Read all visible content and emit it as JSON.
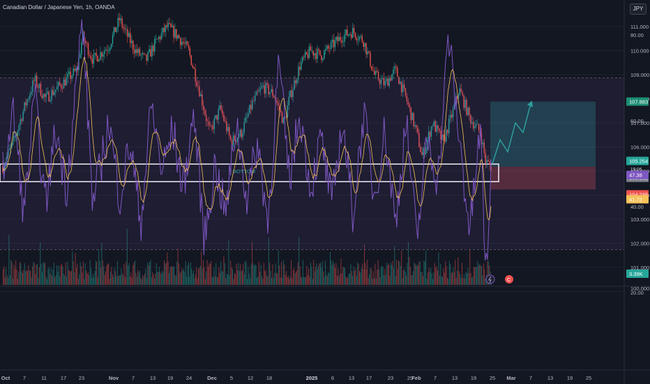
{
  "header": {
    "title": "Canadian Dollar / Japanese Yen, 1h, OANDA",
    "currency": "JPY"
  },
  "colors": {
    "bg": "#131722",
    "up": "#26a69a",
    "down": "#ef5350",
    "rsi": "#7e57c2",
    "rsi_ma": "#f5c15a",
    "box": "#ffffff",
    "arrow": "#26a69a"
  },
  "annotations": {
    "bottom_label": "BOTTOM"
  },
  "price_tags": {
    "target": "107.883",
    "current": "105.254",
    "countdown": "19:06",
    "entry": "105.182",
    "stop": "104.235",
    "volume": "3.39K"
  },
  "rsi_tags": {
    "rsi": "47.38",
    "rsi_ma": "41.72"
  },
  "chart_data": {
    "type": "candlestick",
    "price_axis": {
      "ticks": [
        "111.000",
        "110.000",
        "109.000",
        "108.000",
        "107.000",
        "106.000",
        "105.000",
        "104.000",
        "103.000",
        "102.000",
        "101.000",
        "100.000"
      ],
      "range": [
        100,
        111.5
      ]
    },
    "rsi_axis": {
      "ticks": [
        "80.00",
        "60.00",
        "40.00",
        "20.00"
      ],
      "range": [
        20,
        90
      ],
      "band": [
        30,
        70
      ]
    },
    "x_axis": {
      "ticks": [
        "Oct",
        "7",
        "11",
        "17",
        "23",
        "Nov",
        "7",
        "13",
        "19",
        "24",
        "Dec",
        "5",
        "12",
        "18",
        "2025",
        "6",
        "13",
        "17",
        "23",
        "29",
        "Feb",
        "7",
        "13",
        "19",
        "25",
        "Mar",
        "7",
        "13",
        "19",
        "25"
      ]
    },
    "price_path": [
      [
        0,
        105.2
      ],
      [
        2,
        106.2
      ],
      [
        4,
        107.6
      ],
      [
        6,
        108.8
      ],
      [
        8,
        108.0
      ],
      [
        10,
        108.4
      ],
      [
        12,
        108.8
      ],
      [
        14,
        109.2
      ],
      [
        15,
        110.6
      ],
      [
        17,
        109.6
      ],
      [
        20,
        110.2
      ],
      [
        22,
        111.3
      ],
      [
        23,
        110.8
      ],
      [
        25,
        110.0
      ],
      [
        27,
        109.6
      ],
      [
        29,
        110.4
      ],
      [
        31,
        111.0
      ],
      [
        33,
        110.6
      ],
      [
        35,
        110.0
      ],
      [
        37,
        108.4
      ],
      [
        39,
        106.6
      ],
      [
        41,
        107.6
      ],
      [
        43,
        106.2
      ],
      [
        45,
        106.6
      ],
      [
        47,
        107.8
      ],
      [
        49,
        108.5
      ],
      [
        51,
        108.2
      ],
      [
        53,
        107.0
      ],
      [
        54,
        108.0
      ],
      [
        56,
        109.4
      ],
      [
        58,
        110.0
      ],
      [
        60,
        109.8
      ],
      [
        62,
        110.2
      ],
      [
        64,
        110.6
      ],
      [
        66,
        110.8
      ],
      [
        68,
        110.4
      ],
      [
        70,
        109.0
      ],
      [
        72,
        108.6
      ],
      [
        74,
        109.2
      ],
      [
        76,
        108.0
      ],
      [
        78,
        106.6
      ],
      [
        79,
        105.6
      ],
      [
        81,
        107.0
      ],
      [
        83,
        106.2
      ],
      [
        85,
        107.6
      ],
      [
        86,
        108.4
      ],
      [
        88,
        107.2
      ],
      [
        90,
        106.6
      ],
      [
        91,
        105.4
      ],
      [
        92,
        105.2
      ]
    ],
    "rsi_path": [
      [
        0,
        48
      ],
      [
        2,
        62
      ],
      [
        4,
        38
      ],
      [
        6,
        66
      ],
      [
        8,
        40
      ],
      [
        10,
        58
      ],
      [
        12,
        44
      ],
      [
        15,
        84
      ],
      [
        17,
        40
      ],
      [
        20,
        60
      ],
      [
        22,
        42
      ],
      [
        24,
        55
      ],
      [
        26,
        36
      ],
      [
        28,
        64
      ],
      [
        30,
        48
      ],
      [
        32,
        58
      ],
      [
        34,
        44
      ],
      [
        36,
        62
      ],
      [
        38,
        32
      ],
      [
        40,
        50
      ],
      [
        42,
        38
      ],
      [
        44,
        60
      ],
      [
        46,
        42
      ],
      [
        48,
        55
      ],
      [
        50,
        36
      ],
      [
        52,
        74
      ],
      [
        54,
        46
      ],
      [
        56,
        62
      ],
      [
        58,
        44
      ],
      [
        60,
        56
      ],
      [
        62,
        40
      ],
      [
        64,
        60
      ],
      [
        66,
        38
      ],
      [
        68,
        62
      ],
      [
        70,
        42
      ],
      [
        72,
        58
      ],
      [
        74,
        36
      ],
      [
        76,
        60
      ],
      [
        78,
        32
      ],
      [
        80,
        56
      ],
      [
        82,
        46
      ],
      [
        84,
        80
      ],
      [
        86,
        56
      ],
      [
        88,
        34
      ],
      [
        90,
        58
      ],
      [
        91,
        24
      ],
      [
        92,
        46
      ]
    ],
    "long_position": {
      "entry": 105.182,
      "target": 107.883,
      "stop": 104.235
    },
    "support_box": {
      "top": 105.29,
      "bottom": 104.56,
      "label": "BOTTOM"
    },
    "projection": [
      [
        105.3
      ],
      [
        106.3
      ],
      [
        105.8
      ],
      [
        107.0
      ],
      [
        106.6
      ],
      [
        107.8
      ]
    ]
  }
}
